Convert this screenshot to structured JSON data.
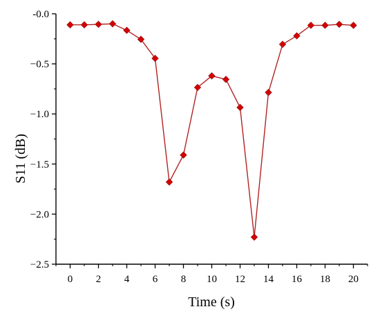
{
  "chart_data": {
    "type": "line",
    "xlabel": "Time (s)",
    "ylabel": "S11 (dB)",
    "xlim": [
      -1,
      21
    ],
    "ylim": [
      -2.5,
      0
    ],
    "xticks": [
      0,
      2,
      4,
      6,
      8,
      10,
      12,
      14,
      16,
      18,
      20
    ],
    "xtick_labels": [
      "0",
      "2",
      "4",
      "6",
      "8",
      "10",
      "12",
      "14",
      "16",
      "18",
      "20"
    ],
    "yticks": [
      0,
      -0.5,
      -1.0,
      -1.5,
      -2.0,
      -2.5
    ],
    "ytick_labels": [
      "-0.0",
      "−0.5",
      "−1.0",
      "−1.5",
      "−2.0",
      "−2.5"
    ],
    "grid": false,
    "series": [
      {
        "x": [
          0,
          1,
          2,
          3,
          4,
          5,
          6,
          7,
          8,
          9,
          10,
          11,
          12,
          13,
          14,
          15,
          16,
          17,
          18,
          19,
          20
        ],
        "values": [
          -0.11,
          -0.11,
          -0.105,
          -0.1,
          -0.165,
          -0.255,
          -0.445,
          -1.68,
          -1.41,
          -0.735,
          -0.62,
          -0.655,
          -0.935,
          -2.23,
          -0.785,
          -0.305,
          -0.22,
          -0.115,
          -0.115,
          -0.105,
          -0.115
        ],
        "color": "#b22222",
        "marker": "diamond",
        "marker_color": "#d40000"
      }
    ]
  }
}
